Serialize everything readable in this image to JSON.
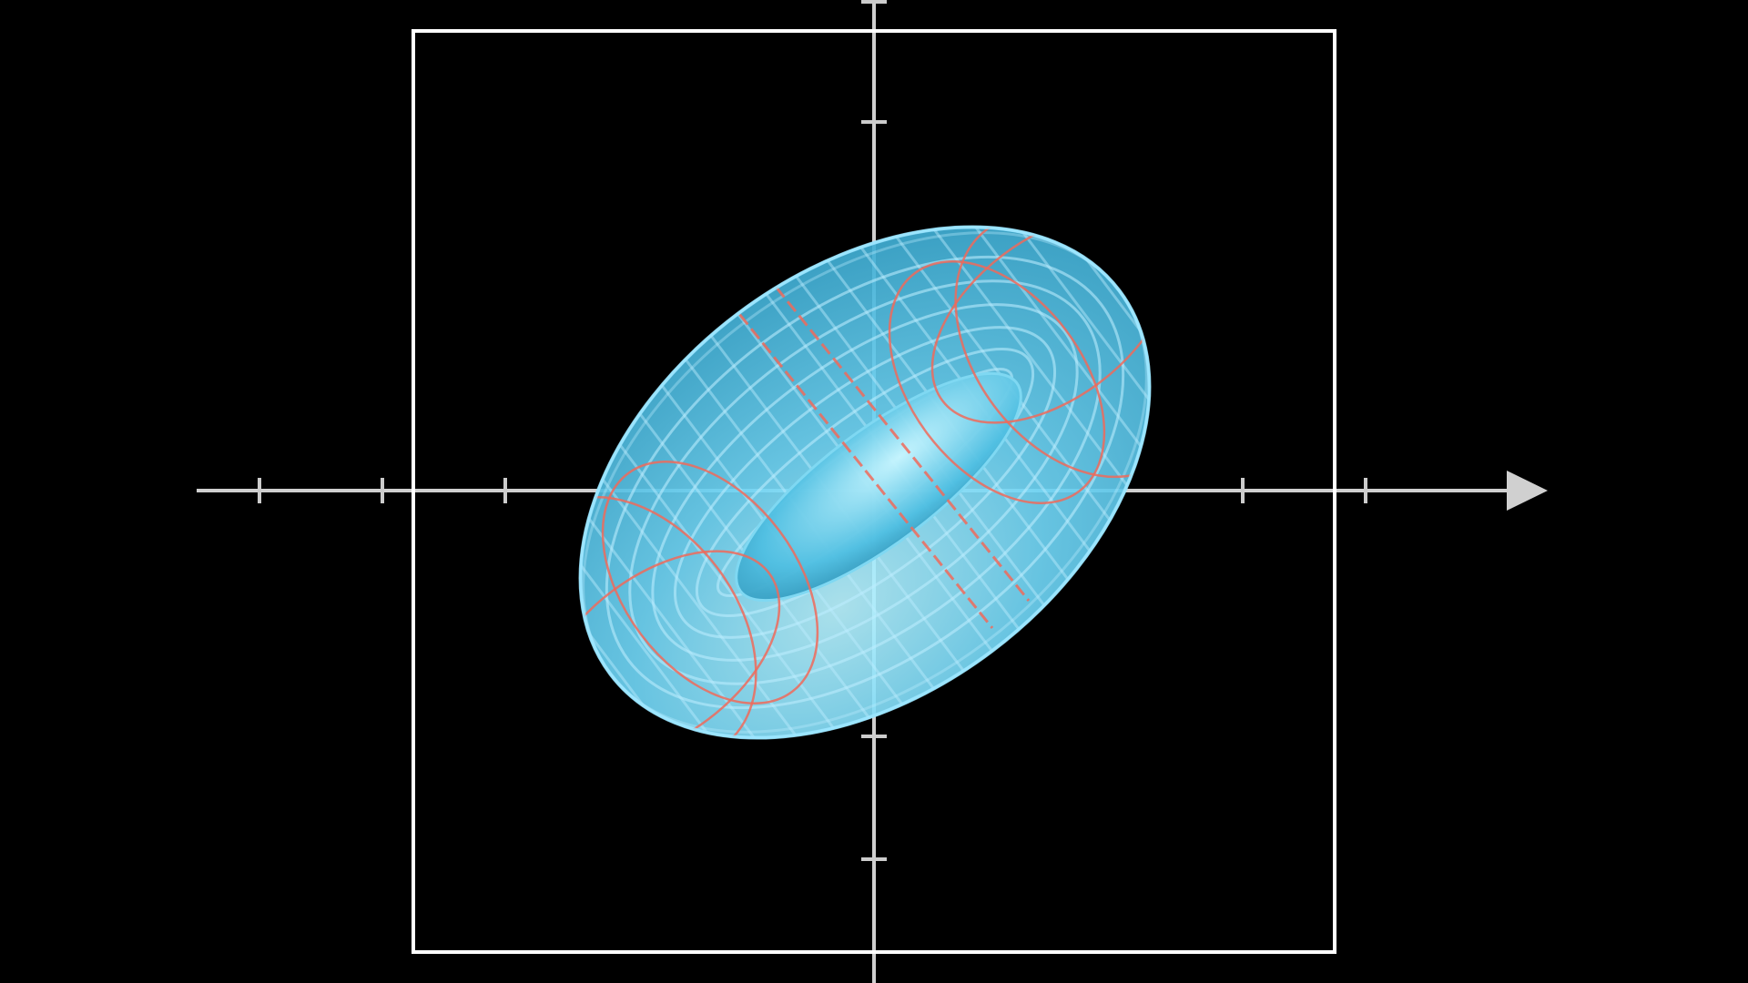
{
  "scene": {
    "description_free": true,
    "background_color": "#000000",
    "axis_color": "#cccccc",
    "frame_color": "#ffffff",
    "surface_fill": "#5ccbf0",
    "surface_highlight": "#a8ecff",
    "surface_shadow": "#2a8fb0",
    "grid_color": "#bdeeff",
    "curve_color": "#f06a5a",
    "x_axis_ticks_left": 3,
    "x_axis_ticks_right": 2,
    "y_axis_ticks_top": 2,
    "y_axis_ticks_bottom": 2,
    "axis_arrow": "right",
    "shape": "torus",
    "tilt_degrees": -37
  }
}
